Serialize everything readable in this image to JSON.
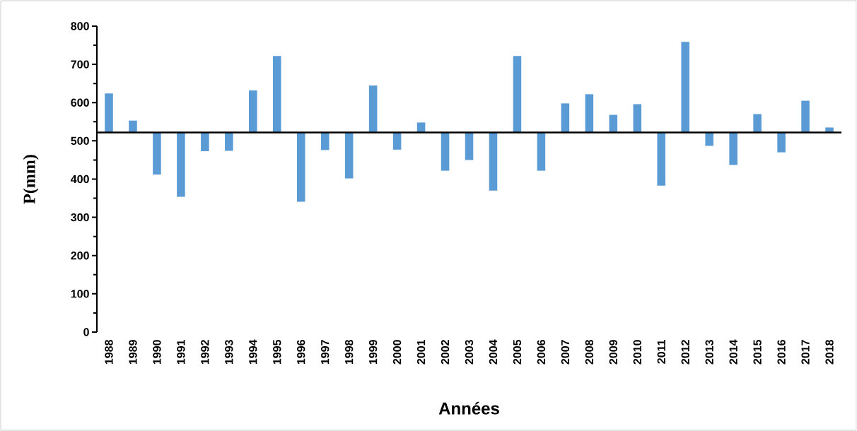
{
  "chart_data": {
    "type": "bar",
    "xlabel": "Années",
    "ylabel": "P(mm)",
    "categories": [
      "1988",
      "1989",
      "1990",
      "1991",
      "1992",
      "1993",
      "1994",
      "1995",
      "1996",
      "1997",
      "1998",
      "1999",
      "2000",
      "2001",
      "2002",
      "2003",
      "2004",
      "2005",
      "2006",
      "2007",
      "2008",
      "2009",
      "2010",
      "2011",
      "2012",
      "2013",
      "2014",
      "2015",
      "2016",
      "2017",
      "2018"
    ],
    "base": [
      522,
      522,
      522,
      522,
      522,
      522,
      522,
      522,
      522,
      522,
      522,
      522,
      522,
      522,
      522,
      522,
      522,
      522,
      522,
      522,
      522,
      522,
      522,
      522,
      522,
      522,
      522,
      522,
      522,
      522,
      522
    ],
    "values": [
      102,
      31,
      -110,
      -168,
      -49,
      -48,
      110,
      200,
      -181,
      -46,
      -120,
      123,
      -45,
      26,
      -100,
      -72,
      -152,
      200,
      -100,
      76,
      100,
      46,
      74,
      -139,
      237,
      -35,
      -85,
      48,
      -52,
      83,
      13
    ],
    "color": "#5b9bd5",
    "ref_lines": [
      {
        "axis": "y",
        "value": 522,
        "color": "#000000"
      }
    ],
    "ylim": [
      0,
      800
    ],
    "yticks": [
      0,
      100,
      200,
      300,
      400,
      500,
      600,
      700,
      800
    ]
  }
}
